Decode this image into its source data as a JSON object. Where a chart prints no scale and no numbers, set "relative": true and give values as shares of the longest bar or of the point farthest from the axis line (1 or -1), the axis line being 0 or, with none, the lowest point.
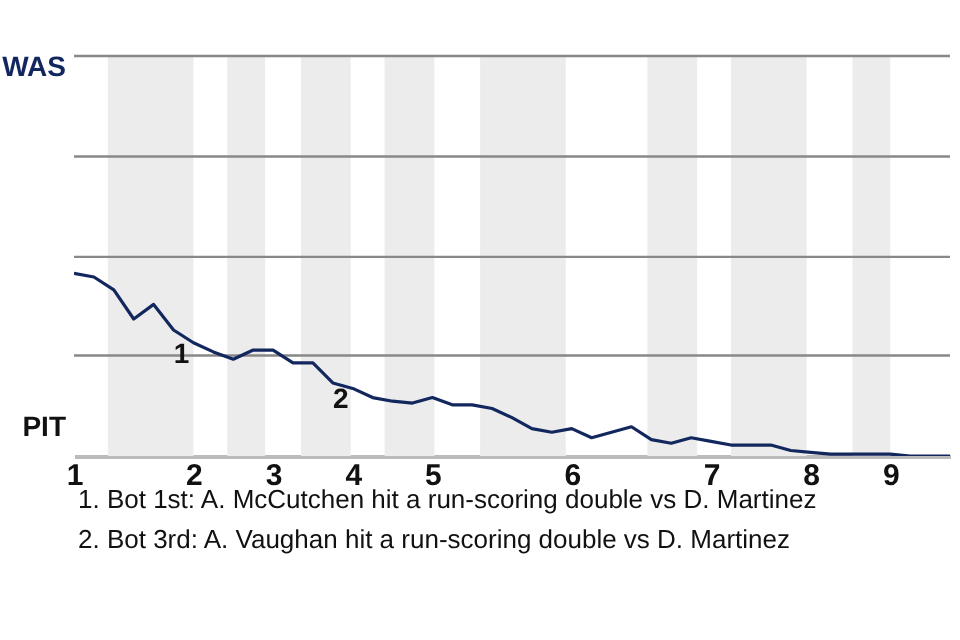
{
  "chart_data": {
    "type": "line",
    "relative": true,
    "categories": [
      "1",
      null,
      null,
      null,
      null,
      null,
      "2",
      null,
      null,
      null,
      "3",
      null,
      null,
      null,
      "4",
      null,
      null,
      null,
      "5",
      null,
      null,
      null,
      null,
      null,
      null,
      "6",
      null,
      null,
      null,
      null,
      null,
      null,
      "7",
      null,
      null,
      null,
      null,
      "8",
      null,
      null,
      null,
      "9",
      null,
      null,
      null
    ],
    "series": [
      {
        "color": "#13275f",
        "values": [
          1,
          0.98,
          0.91,
          0.75,
          0.83,
          0.69,
          0.62,
          0.57,
          0.53,
          0.58,
          0.58,
          0.51,
          0.51,
          0.4,
          0.37,
          0.32,
          0.3,
          0.29,
          0.32,
          0.28,
          0.28,
          0.26,
          0.21,
          0.15,
          0.13,
          0.15,
          0.1,
          0.13,
          0.16,
          0.09,
          0.07,
          0.1,
          0.08,
          0.06,
          0.06,
          0.06,
          0.03,
          0.02,
          0.01,
          0.01,
          0.01,
          0.01,
          0,
          0,
          0
        ]
      }
    ],
    "ref_lines": [
      {
        "axis": "y",
        "value": 0.55,
        "color": "#888888"
      },
      {
        "axis": "y",
        "value": 1.09,
        "color": "#888888"
      },
      {
        "axis": "y",
        "value": 1.64,
        "color": "#888888"
      },
      {
        "axis": "y",
        "value": 2.19,
        "color": "#888888"
      }
    ],
    "annotations": [
      {
        "text": "1",
        "y": 0.62
      },
      {
        "text": "2",
        "y": 0.37
      },
      "WAS",
      "PIT",
      "1. Bot 1st: A. McCutchen hit a run-scoring double vs D. Martinez",
      "2. Bot 3rd: A. Vaughan hit a run-scoring double vs D. Martinez"
    ]
  }
}
